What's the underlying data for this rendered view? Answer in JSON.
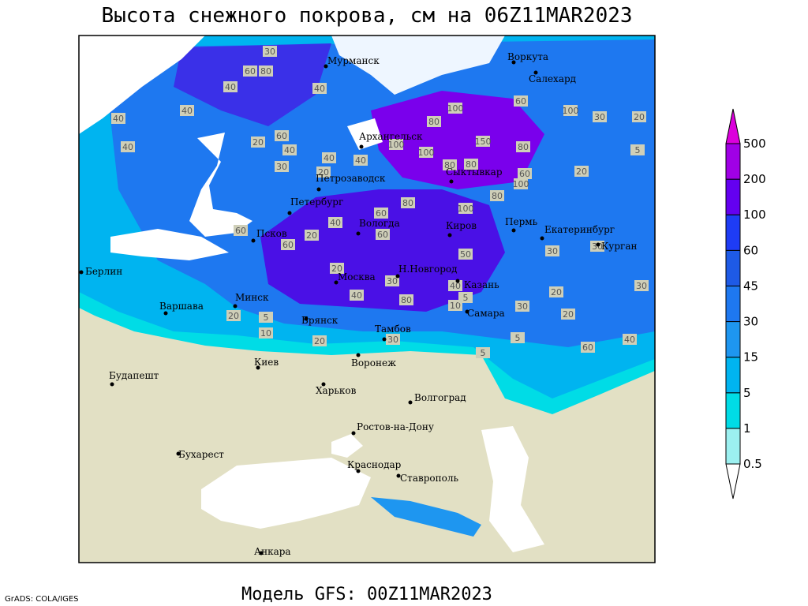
{
  "title": "Высота снежного покрова, см на 06Z11MAR2023",
  "subtitle": "Модель GFS: 00Z11MAR2023",
  "credit": "GrADS: COLA/IGES",
  "cities": [
    "Мурманск",
    "Воркута",
    "Салехард",
    "Архангельск",
    "Сыктывкар",
    "Петрозаводск",
    "Петербург",
    "Вологда",
    "Киров",
    "Пермь",
    "Екатеринбург",
    "Курган",
    "Псков",
    "Берлин",
    "Москва",
    "Н.Новгород",
    "Казань",
    "Варшава",
    "Минск",
    "Брянск",
    "Тамбов",
    "Самара",
    "Киев",
    "Воронеж",
    "Будапешт",
    "Харьков",
    "Волгоград",
    "Ростов-на-Дону",
    "Бухарест",
    "Краснодар",
    "Ставрополь",
    "Анкара"
  ],
  "contour_labels": [
    30,
    60,
    80,
    40,
    40,
    40,
    60,
    40,
    40,
    20,
    60,
    40,
    30,
    40,
    100,
    100,
    150,
    80,
    60,
    80,
    100,
    60,
    80,
    100,
    100,
    80,
    20,
    40,
    60,
    30,
    20,
    20,
    100,
    80,
    60,
    60,
    40,
    50,
    80,
    30,
    30,
    20,
    40,
    80,
    40,
    30,
    20,
    30,
    20,
    5,
    10,
    20,
    5,
    10,
    20,
    30,
    5,
    20,
    5,
    30,
    5,
    60,
    40
  ],
  "legend": {
    "levels": [
      0.5,
      1,
      5,
      15,
      30,
      45,
      60,
      100,
      200,
      500
    ],
    "colors": [
      "#ffffff",
      "#9cf0f0",
      "#00dce6",
      "#00b4f0",
      "#1e96f0",
      "#1e78f0",
      "#1e5ae6",
      "#1e3cf5",
      "#6400f0",
      "#a000e6",
      "#dc00dc"
    ]
  }
}
